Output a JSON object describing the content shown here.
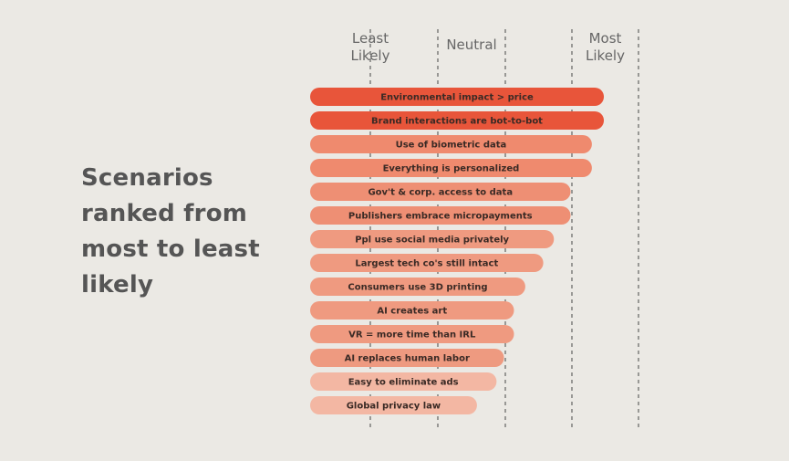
{
  "title_lines": [
    "Scenarios",
    "ranked from",
    "most to least",
    "likely"
  ],
  "chart_data": {
    "type": "bar",
    "orientation": "horizontal",
    "title": "Scenarios ranked from most to least likely",
    "scale_labels": [
      {
        "lines": [
          "Least",
          "Likely"
        ],
        "at": 0
      },
      {
        "lines": [
          "Neutral"
        ],
        "at": 1.5
      },
      {
        "lines": [
          "Most",
          "Likely"
        ],
        "at": 3.5
      }
    ],
    "scale_lines": [
      0,
      1,
      2,
      3,
      4
    ],
    "xlim": [
      0,
      4
    ],
    "categories": [
      "Environmental impact > price",
      "Brand interactions are bot-to-bot",
      "Use of biometric data",
      "Everything is personalized",
      "Gov't & corp. access to data",
      "Publishers embrace micropayments",
      "Ppl use social media privately",
      "Largest tech co's still intact",
      "Consumers use 3D printing",
      "AI creates art",
      "VR = more time than IRL",
      "AI replaces human labor",
      "Easy to eliminate ads",
      "Global privacy law"
    ],
    "values": [
      3.48,
      3.48,
      3.3,
      3.3,
      2.98,
      2.98,
      2.73,
      2.57,
      2.3,
      2.13,
      2.13,
      1.98,
      1.87,
      1.58
    ],
    "colors": [
      "#e8553a",
      "#e8553a",
      "#ef8a6e",
      "#ef8a6e",
      "#ee8f74",
      "#ee8f74",
      "#ef9a80",
      "#ef9a80",
      "#ef9a80",
      "#ef9a80",
      "#ef9a80",
      "#ee9a80",
      "#f3b7a3",
      "#f3b7a3"
    ],
    "label_color": "#3a2a25",
    "grid": "dashed vertical lines"
  }
}
